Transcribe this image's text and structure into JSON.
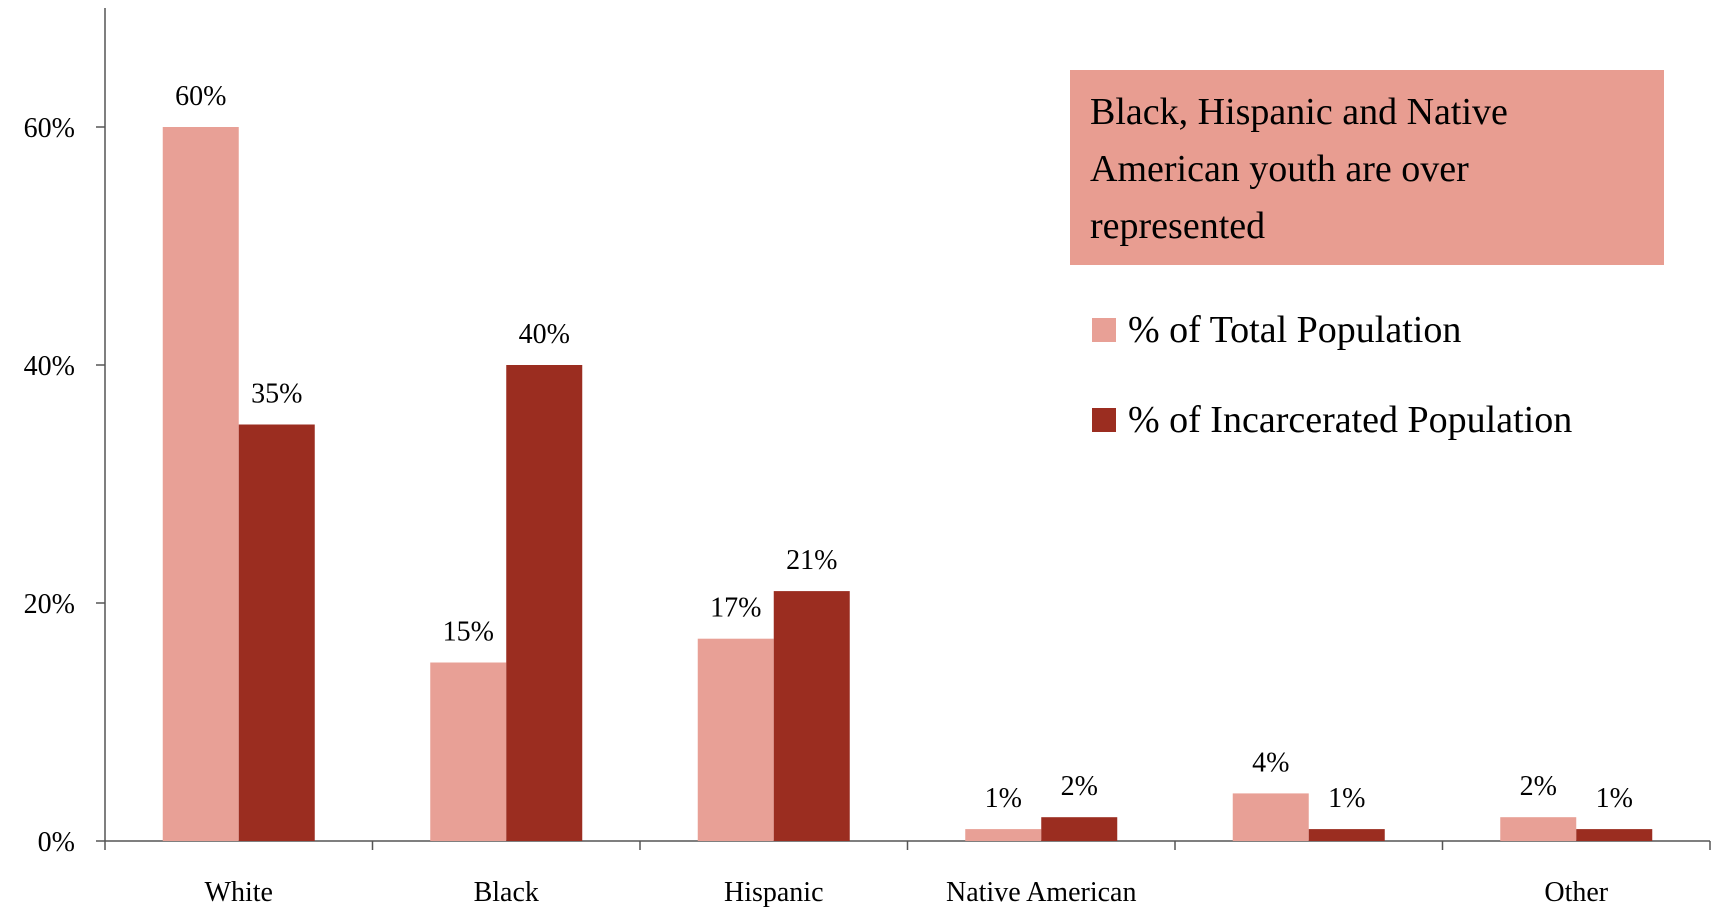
{
  "colors": {
    "total": "#E8A096",
    "incarcerated": "#9B2D20",
    "callout_bg": "#E89D91",
    "axis": "#555555"
  },
  "callout": {
    "text": "Black, Hispanic and Native American youth are over represented"
  },
  "legend": {
    "items": [
      {
        "label": "% of Total Population",
        "color": "#E8A096"
      },
      {
        "label": "% of Incarcerated Population",
        "color": "#9B2D20"
      }
    ]
  },
  "chart_data": {
    "type": "bar",
    "categories": [
      "White",
      "Black",
      "Hispanic",
      "Native American",
      "",
      "Other"
    ],
    "series": [
      {
        "name": "% of Total Population",
        "values": [
          60,
          15,
          17,
          1,
          4,
          2
        ]
      },
      {
        "name": "% of Incarcerated Population",
        "values": [
          35,
          40,
          21,
          2,
          1,
          1
        ]
      }
    ],
    "y_ticks": [
      0,
      20,
      40,
      60
    ],
    "y_tick_labels": [
      "0%",
      "20%",
      "40%",
      "60%"
    ],
    "ylim": [
      0,
      70
    ],
    "value_suffix": "%",
    "grid": false,
    "legend_position": "right"
  }
}
